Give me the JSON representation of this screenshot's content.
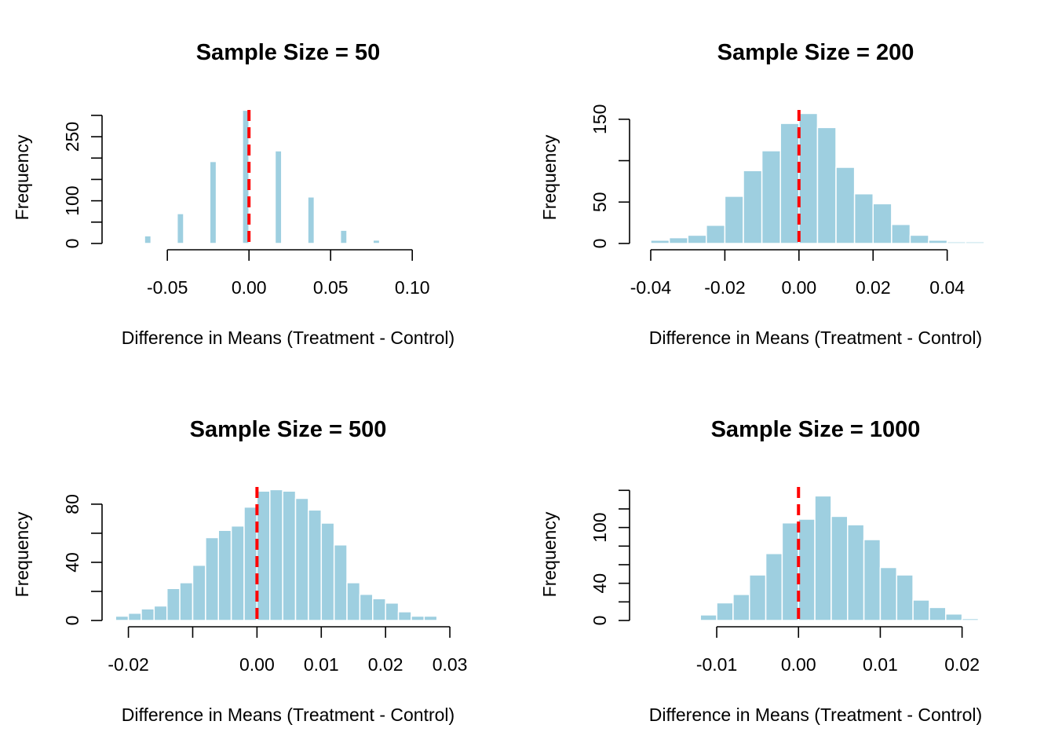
{
  "colors": {
    "bar_fill": "#9ecfe0",
    "reference_line": "#ff0000",
    "background": "#ffffff"
  },
  "chart_data": [
    {
      "type": "bar",
      "title": "Sample Size = 50",
      "xlabel": "Difference in Means (Treatment - Control)",
      "ylabel": "Frequency",
      "xlim": [
        -0.09,
        0.11
      ],
      "ylim": [
        0,
        320
      ],
      "x_ticks": [
        -0.05,
        0.0,
        0.05,
        0.1
      ],
      "x_tick_labels": [
        "-0.05",
        "0.00",
        "0.05",
        "0.10"
      ],
      "x_axis_range": [
        -0.05,
        0.1
      ],
      "y_ticks": [
        0,
        50,
        100,
        150,
        200,
        250,
        300
      ],
      "y_tick_labels": [
        "0",
        "",
        "100",
        "",
        "",
        "250",
        ""
      ],
      "y_axis_range": [
        0,
        300
      ],
      "bin_width": 0.004,
      "bin_left_edges": [
        -0.078,
        -0.064,
        -0.044,
        -0.024,
        -0.004,
        0.016,
        0.036,
        0.056,
        0.076
      ],
      "values": [
        2,
        18,
        70,
        192,
        312,
        217,
        109,
        31,
        8
      ],
      "reference_line_x": 0.0,
      "grid": false,
      "legend": "none"
    },
    {
      "type": "bar",
      "title": "Sample Size = 200",
      "xlabel": "Difference in Means (Treatment - Control)",
      "ylabel": "Frequency",
      "xlim": [
        -0.0436,
        0.0513
      ],
      "ylim": [
        0,
        165
      ],
      "x_ticks": [
        -0.04,
        -0.02,
        0.0,
        0.02,
        0.04
      ],
      "x_tick_labels": [
        "-0.04",
        "-0.02",
        "0.00",
        "0.02",
        "0.04"
      ],
      "x_axis_range": [
        -0.04,
        0.04
      ],
      "y_ticks": [
        0,
        50,
        100,
        150
      ],
      "y_tick_labels": [
        "0",
        "50",
        "",
        "150"
      ],
      "y_axis_range": [
        0,
        150
      ],
      "bin_width": 0.005,
      "bin_left_edges": [
        -0.04,
        -0.035,
        -0.03,
        -0.025,
        -0.02,
        -0.015,
        -0.01,
        -0.005,
        0.0,
        0.005,
        0.01,
        0.015,
        0.02,
        0.025,
        0.03,
        0.035,
        0.04,
        0.045
      ],
      "values": [
        4,
        7,
        10,
        22,
        57,
        88,
        112,
        145,
        157,
        140,
        92,
        60,
        48,
        23,
        10,
        4,
        2,
        2
      ],
      "reference_line_x": 0.0,
      "grid": false,
      "legend": "none"
    },
    {
      "type": "bar",
      "title": "Sample Size = 500",
      "xlabel": "Difference in Means (Treatment - Control)",
      "ylabel": "Frequency",
      "xlim": [
        -0.0241,
        0.0306
      ],
      "ylim": [
        0,
        94
      ],
      "x_ticks": [
        -0.02,
        -0.01,
        0.0,
        0.01,
        0.02,
        0.03
      ],
      "x_tick_labels": [
        "-0.02",
        "",
        "0.00",
        "0.01",
        "0.02",
        "0.03"
      ],
      "x_axis_range": [
        -0.02,
        0.03
      ],
      "y_ticks": [
        0,
        20,
        40,
        60,
        80
      ],
      "y_tick_labels": [
        "0",
        "",
        "40",
        "",
        "80"
      ],
      "y_axis_range": [
        0,
        80
      ],
      "bin_width": 0.002,
      "bin_left_edges": [
        -0.022,
        -0.02,
        -0.018,
        -0.016,
        -0.014,
        -0.012,
        -0.01,
        -0.008,
        -0.006,
        -0.004,
        -0.002,
        0.0,
        0.002,
        0.004,
        0.006,
        0.008,
        0.01,
        0.012,
        0.014,
        0.016,
        0.018,
        0.02,
        0.022,
        0.024,
        0.026
      ],
      "values": [
        3,
        5,
        8,
        10,
        22,
        26,
        38,
        57,
        62,
        65,
        78,
        89,
        90,
        89,
        84,
        76,
        67,
        52,
        26,
        18,
        15,
        12,
        6,
        3,
        3
      ],
      "reference_line_x": 0.0,
      "grid": false,
      "legend": "none"
    },
    {
      "type": "bar",
      "title": "Sample Size = 1000",
      "xlabel": "Difference in Means (Treatment - Control)",
      "ylabel": "Frequency",
      "xlim": [
        -0.0197,
        0.0233
      ],
      "ylim": [
        0,
        147
      ],
      "x_ticks": [
        -0.01,
        0.0,
        0.01,
        0.02
      ],
      "x_tick_labels": [
        "-0.01",
        "0.00",
        "0.01",
        "0.02"
      ],
      "x_axis_range": [
        -0.01,
        0.02
      ],
      "y_ticks": [
        0,
        20,
        40,
        60,
        80,
        100,
        120,
        140
      ],
      "y_tick_labels": [
        "0",
        "",
        "40",
        "",
        "",
        "100",
        "",
        ""
      ],
      "y_axis_range": [
        0,
        140
      ],
      "bin_width": 0.002,
      "bin_left_edges": [
        -0.014,
        -0.012,
        -0.01,
        -0.008,
        -0.006,
        -0.004,
        -0.002,
        0.0,
        0.002,
        0.004,
        0.006,
        0.008,
        0.01,
        0.012,
        0.014,
        0.016,
        0.018,
        0.02
      ],
      "values": [
        1,
        6,
        19,
        28,
        49,
        72,
        105,
        109,
        134,
        112,
        103,
        87,
        57,
        49,
        22,
        14,
        7,
        2
      ],
      "reference_line_x": 0.0,
      "grid": false,
      "legend": "none"
    }
  ]
}
